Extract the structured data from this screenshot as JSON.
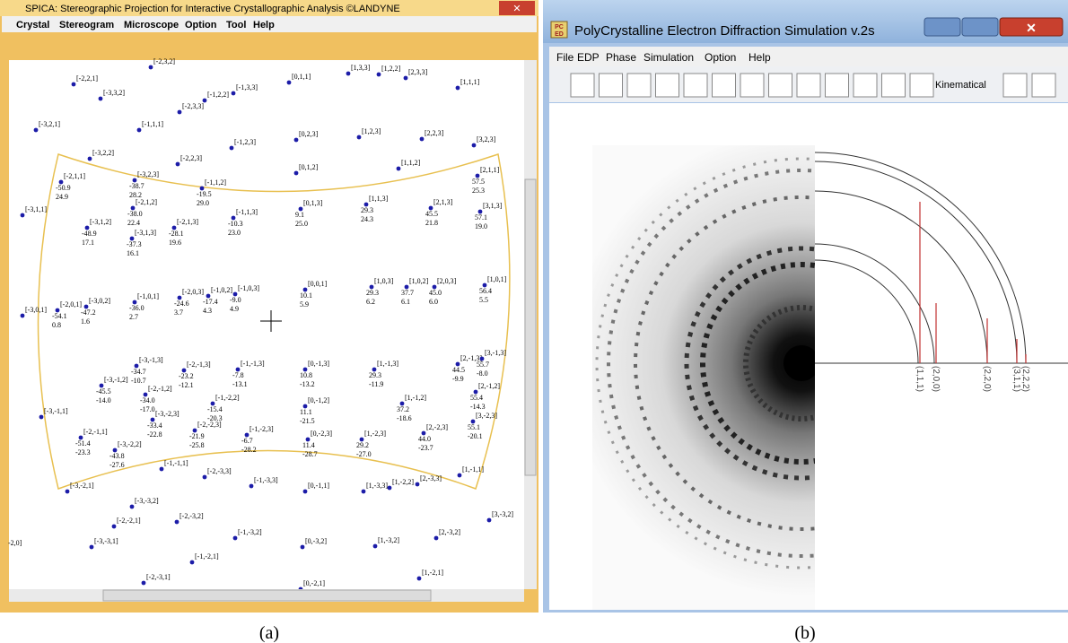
{
  "left_window": {
    "title": "SPICA: Stereographic Projection for Interactive Crystallographic Analysis ©LANDYNE",
    "menu": [
      "Crystal",
      "Stereogram",
      "Microscope",
      "Option",
      "Tool",
      "Help"
    ],
    "poles": [
      {
        "label": "[-2,3,2]"
      },
      {
        "label": "[-2,2,1]"
      },
      {
        "label": "[-3,3,2]"
      },
      {
        "label": "[-1,2,2]"
      },
      {
        "label": "[-1,3,3]"
      },
      {
        "label": "[-2,3,3]"
      },
      {
        "label": "[0,1,1]"
      },
      {
        "label": "[1,3,3]"
      },
      {
        "label": "[1,2,2]"
      },
      {
        "label": "[2,3,3]"
      },
      {
        "label": "[1,1,1]"
      },
      {
        "label": "[-3,2,1]"
      },
      {
        "label": "[-1,1,1]"
      },
      {
        "label": "[0,2,3]"
      },
      {
        "label": "[1,2,3]"
      },
      {
        "label": "[2,2,3]"
      },
      {
        "label": "[3,2,3]"
      },
      {
        "label": "[-3,2,2]"
      },
      {
        "label": "[-1,2,3]"
      },
      {
        "label": "[-2,2,3]"
      },
      {
        "label": "[0,1,2]"
      },
      {
        "label": "[1,1,2]"
      },
      {
        "label": "[-2,1,1]",
        "angles": [
          "-50.9",
          "24.9"
        ]
      },
      {
        "label": "[-3,2,3]",
        "angles": [
          "-38.7",
          "28.2"
        ]
      },
      {
        "label": "[-1,1,2]",
        "angles": [
          "-19.5",
          "29.0"
        ]
      },
      {
        "label": "[2,1,1]",
        "angles": [
          "57.5",
          "25.3"
        ]
      },
      {
        "label": "[-3,1,1]"
      },
      {
        "label": "[-2,1,2]",
        "angles": [
          "-38.0",
          "22.4"
        ]
      },
      {
        "label": "[0,1,3]",
        "angles": [
          "9.1",
          "25.0"
        ]
      },
      {
        "label": "[1,1,3]",
        "angles": [
          "29.3",
          "24.3"
        ]
      },
      {
        "label": "[2,1,3]",
        "angles": [
          "45.5",
          "21.8"
        ]
      },
      {
        "label": "[3,1,3]",
        "angles": [
          "57.1",
          "19.0"
        ]
      },
      {
        "label": "[-3,1,2]",
        "angles": [
          "-48.9",
          "17.1"
        ]
      },
      {
        "label": "[-2,1,3]",
        "angles": [
          "-28.1",
          "19.6"
        ]
      },
      {
        "label": "[-1,1,3]",
        "angles": [
          "-10.3",
          "23.0"
        ]
      },
      {
        "label": "[-3,1,3]",
        "angles": [
          "-37.3",
          "16.1"
        ]
      },
      {
        "label": "[1,0,3]",
        "angles": [
          "29.3",
          "6.2"
        ]
      },
      {
        "label": "[1,0,2]",
        "angles": [
          "37.7",
          "6.1"
        ]
      },
      {
        "label": "[2,0,3]",
        "angles": [
          "45.0",
          "6.0"
        ]
      },
      {
        "label": "[1,0,1]",
        "angles": [
          "56.4",
          "5.5"
        ]
      },
      {
        "label": "[0,0,1]",
        "angles": [
          "10.1",
          "5.9"
        ]
      },
      {
        "label": "[-1,0,3]",
        "angles": [
          "-9.0",
          "4.9"
        ]
      },
      {
        "label": "[-1,0,2]",
        "angles": [
          "-17.4",
          "4.3"
        ]
      },
      {
        "label": "[-2,0,3]",
        "angles": [
          "-24.6",
          "3.7"
        ]
      },
      {
        "label": "[-1,0,1]",
        "angles": [
          "-36.0",
          "2.7"
        ]
      },
      {
        "label": "[-3,0,2]",
        "angles": [
          "-47.2",
          "1.6"
        ]
      },
      {
        "label": "[-2,0,1]",
        "angles": [
          "-54.1",
          "0.8"
        ]
      },
      {
        "label": "[-3,0,1]"
      },
      {
        "label": "[-3,-1,3]",
        "angles": [
          "-34.7",
          "-10.7"
        ]
      },
      {
        "label": "[-2,-1,3]",
        "angles": [
          "-23.2",
          "-12.1"
        ]
      },
      {
        "label": "[-1,-1,3]",
        "angles": [
          "-7.8",
          "-13.1"
        ]
      },
      {
        "label": "[0,-1,3]",
        "angles": [
          "10.8",
          "-13.2"
        ]
      },
      {
        "label": "[1,-1,3]",
        "angles": [
          "29.3",
          "-11.9"
        ]
      },
      {
        "label": "[2,-1,3]",
        "angles": [
          "44.5",
          "-9.9"
        ]
      },
      {
        "label": "[3,-1,3]",
        "angles": [
          "55.7",
          "-8.0"
        ]
      },
      {
        "label": "[-3,-1,2]",
        "angles": [
          "-45.5",
          "-14.0"
        ]
      },
      {
        "label": "[-2,-1,2]",
        "angles": [
          "-34.0",
          "-17.0"
        ]
      },
      {
        "label": "[-1,-2,2]",
        "angles": [
          "-15.4",
          "-20.3"
        ]
      },
      {
        "label": "[0,-1,2]",
        "angles": [
          "11.1",
          "-21.5"
        ]
      },
      {
        "label": "[1,-1,2]",
        "angles": [
          "37.2",
          "-18.6"
        ]
      },
      {
        "label": "[2,-1,2]",
        "angles": [
          "55.4",
          "-14.3"
        ]
      },
      {
        "label": "[-3,-1,1]"
      },
      {
        "label": "[-3,-2,3]",
        "angles": [
          "-33.4",
          "-22.8"
        ]
      },
      {
        "label": "[-2,-2,3]",
        "angles": [
          "-21.9",
          "-25.8"
        ]
      },
      {
        "label": "[-1,-2,3]",
        "angles": [
          "-6.7",
          "-28.2"
        ]
      },
      {
        "label": "[2,-2,3]",
        "angles": [
          "44.0",
          "-23.7"
        ]
      },
      {
        "label": "[3,-2,3]",
        "angles": [
          "55.1",
          "-20.1"
        ]
      },
      {
        "label": "[-2,-1,1]",
        "angles": [
          "-51.4",
          "-23.3"
        ]
      },
      {
        "label": "[-3,-2,2]",
        "angles": [
          "-43.8",
          "-27.6"
        ]
      },
      {
        "label": "[0,-2,3]",
        "angles": [
          "11.4",
          "-28.7"
        ]
      },
      {
        "label": "[1,-2,3]",
        "angles": [
          "29.2",
          "-27.0"
        ]
      },
      {
        "label": "[-1,-1,1]"
      },
      {
        "label": "[-2,-3,3]"
      },
      {
        "label": "[-1,-3,3]"
      },
      {
        "label": "[0,-1,1]"
      },
      {
        "label": "[1,-3,3]"
      },
      {
        "label": "[1,-2,2]"
      },
      {
        "label": "[2,-3,3]"
      },
      {
        "label": "[1,-1,1]"
      },
      {
        "label": "[-3,-2,1]"
      },
      {
        "label": "[-3,-3,2]"
      },
      {
        "label": "[-2,-3,2]"
      },
      {
        "label": "[-2,-2,1]"
      },
      {
        "label": "[3,-3,2]"
      },
      {
        "label": "[-1,-3,2]"
      },
      {
        "label": "[2,-3,2]"
      },
      {
        "label": "[-3,-3,1]"
      },
      {
        "label": "[0,-3,2]"
      },
      {
        "label": "[1,-3,2]"
      },
      {
        "label": "[-1,-2,1]"
      },
      {
        "label": "[1,-2,1]"
      },
      {
        "label": "[-2,-3,1]"
      },
      {
        "label": "[0,-2,1]"
      },
      {
        "label": "-2,0]"
      }
    ]
  },
  "right_window": {
    "title": "PolyCrystalline Electron Diffraction Simulation v.2s",
    "icon": [
      "PC",
      "ED"
    ],
    "menu": [
      "File",
      "EDP",
      "Phase",
      "Simulation",
      "Option",
      "Help"
    ],
    "mode": "Kinematical",
    "ring_labels": [
      "(1,1,1)",
      "(2,0,0)",
      "(2,2,0)",
      "(3,1,1)",
      "(2,2,2)"
    ]
  },
  "captions": [
    "(a)",
    "(b)"
  ]
}
